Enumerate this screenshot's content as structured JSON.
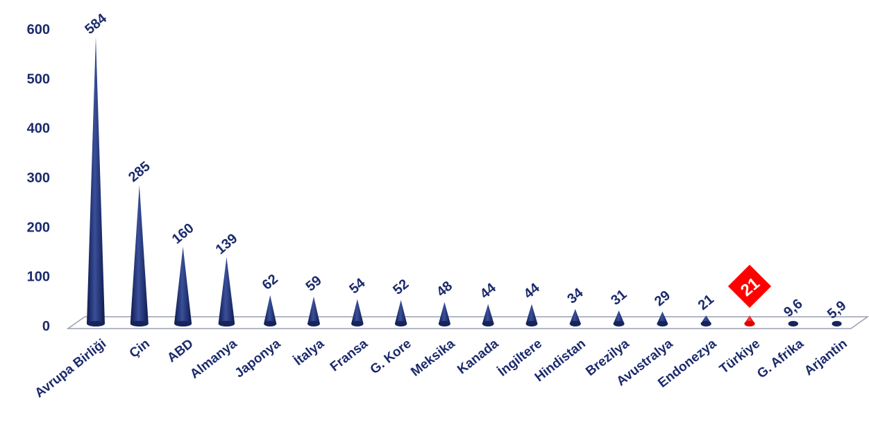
{
  "chart_data": {
    "type": "bar",
    "title": "",
    "xlabel": "",
    "ylabel": "",
    "ylim": [
      0,
      600
    ],
    "yticks": [
      "0",
      "100",
      "200",
      "300",
      "400",
      "500",
      "600"
    ],
    "grid": false,
    "categories": [
      "Avrupa Birliği",
      "Çin",
      "ABD",
      "Almanya",
      "Japonya",
      "İtalya",
      "Fransa",
      "G. Kore",
      "Meksika",
      "Kanada",
      "İngiltere",
      "Hindistan",
      "Brezilya",
      "Avustralya",
      "Endonezya",
      "Türkiye",
      "G. Afrika",
      "Arjantin"
    ],
    "values": [
      584,
      285,
      160,
      139,
      62,
      59,
      54,
      52,
      48,
      44,
      44,
      34,
      31,
      29,
      21,
      21,
      9.6,
      5.9
    ],
    "value_labels": [
      "584",
      "285",
      "160",
      "139",
      "62",
      "59",
      "54",
      "52",
      "48",
      "44",
      "44",
      "34",
      "31",
      "29",
      "21",
      "21",
      "9,6",
      "5,9"
    ],
    "highlight_index": 15,
    "colors": {
      "bar": "#1b2a6b",
      "highlight": "#ff0000",
      "text": "#1b2a6b"
    }
  }
}
